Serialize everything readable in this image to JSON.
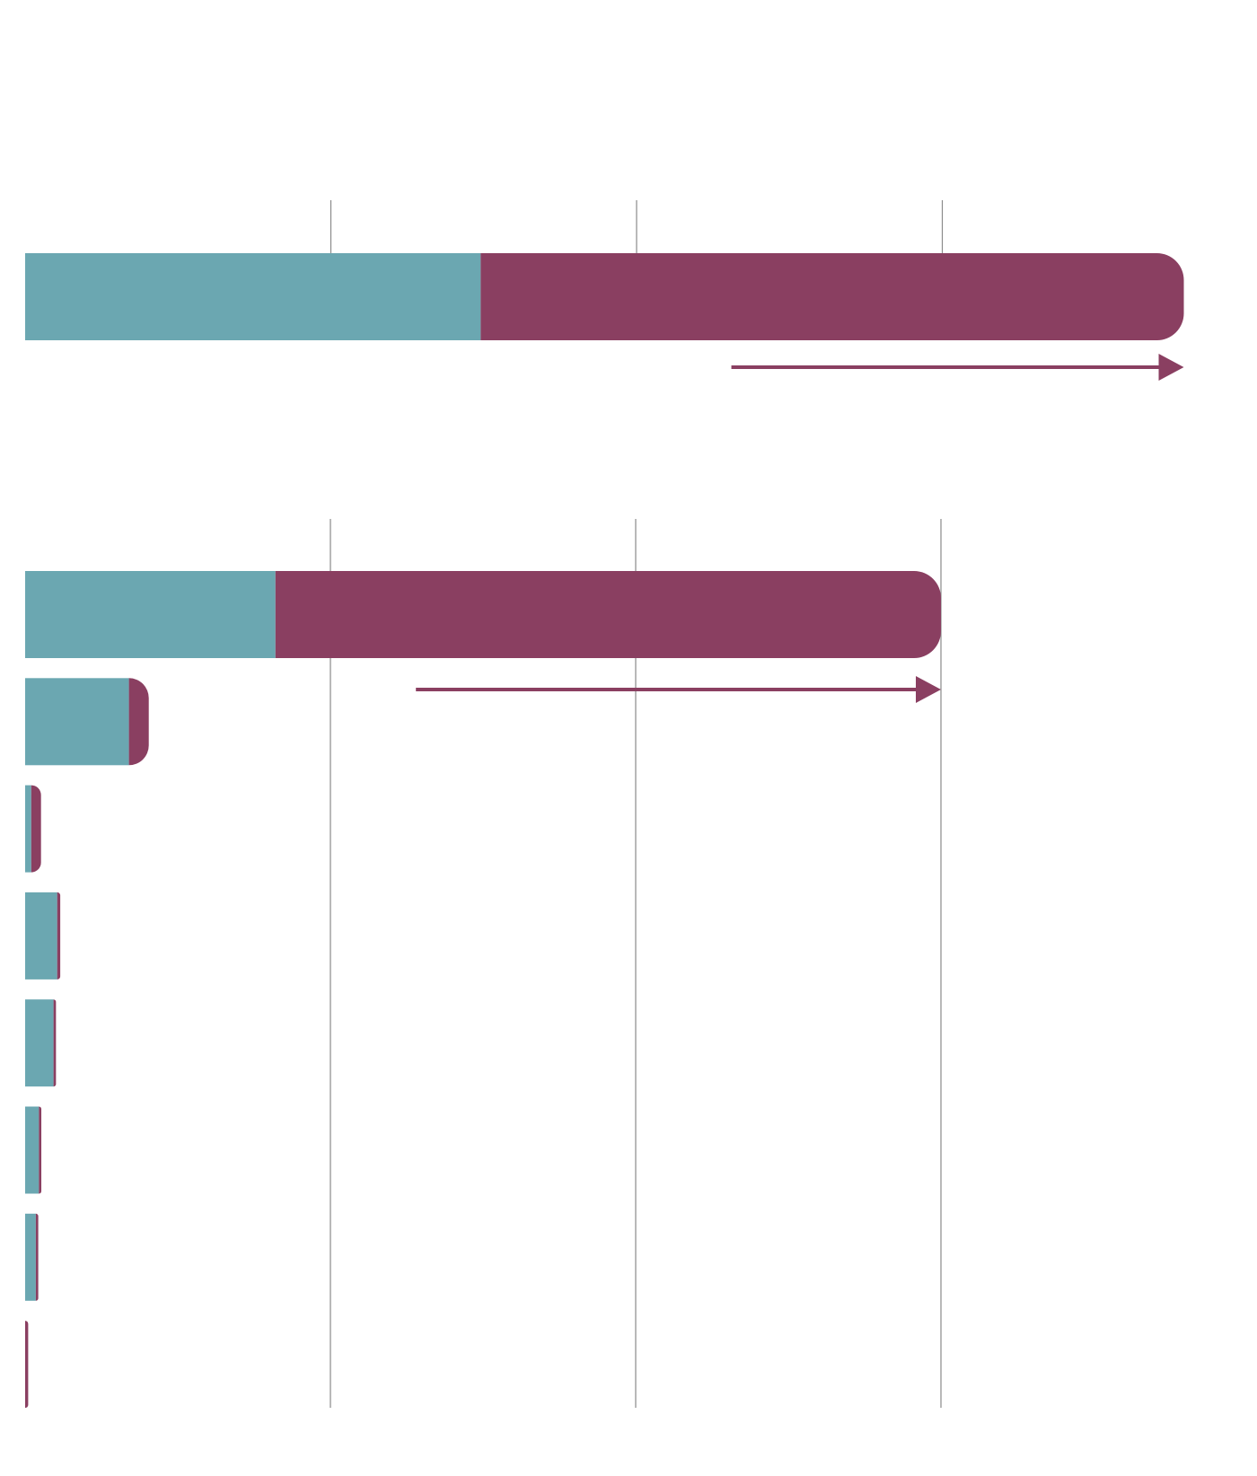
{
  "colors": {
    "series_a": "#6ba7b1",
    "series_b": "#8a3f61",
    "gridline": "#8a8a8a",
    "background": "#ffffff"
  },
  "chart_data": [
    {
      "type": "bar",
      "orientation": "horizontal",
      "stacked": true,
      "title": "",
      "xlabel": "",
      "ylabel": "",
      "xlim": [
        0,
        3.8
      ],
      "grid": true,
      "gridlines": [
        1,
        2,
        3
      ],
      "categories": [
        ""
      ],
      "series": [
        {
          "values": [
            1.49
          ]
        },
        {
          "values": [
            2.3
          ]
        }
      ],
      "annotation": {
        "type": "arrow",
        "from": 2.31,
        "to": 3.79
      }
    },
    {
      "type": "bar",
      "orientation": "horizontal",
      "stacked": true,
      "title": "",
      "xlabel": "",
      "ylabel": "",
      "xlim": [
        0,
        3.8
      ],
      "grid": true,
      "gridlines": [
        1,
        2,
        3
      ],
      "categories": [
        "",
        "",
        "",
        "",
        "",
        "",
        "",
        ""
      ],
      "series": [
        {
          "values": [
            0.82,
            0.34,
            0.02,
            0.105,
            0.093,
            0.045,
            0.035,
            0.0
          ]
        },
        {
          "values": [
            2.18,
            0.065,
            0.032,
            0.01,
            0.008,
            0.008,
            0.008,
            0.01
          ]
        }
      ],
      "annotation": {
        "type": "arrow",
        "from": 1.28,
        "to": 3.0
      }
    }
  ]
}
